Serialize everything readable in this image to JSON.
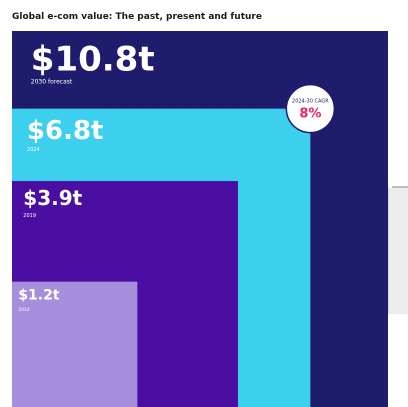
{
  "title": "Global e-com value: The past, present and future",
  "chart_data": {
    "type": "nested-square",
    "unit": "$ trillion",
    "series": [
      {
        "value_label": "$10.8t",
        "period_label": "2030 forecast",
        "value": 10.8,
        "color": "#1f1c6e"
      },
      {
        "value_label": "$6.8t",
        "period_label": "2024",
        "value": 6.8,
        "color": "#3ccfee"
      },
      {
        "value_label": "$3.9t",
        "period_label": "2019",
        "value": 3.9,
        "color": "#4a0fa2"
      },
      {
        "value_label": "$1.2t",
        "period_label": "2014",
        "value": 1.2,
        "color": "#a58fdd"
      }
    ],
    "badge": {
      "label": "2024-30 CAGR",
      "value": "8%",
      "value_color": "#e8265e"
    }
  }
}
